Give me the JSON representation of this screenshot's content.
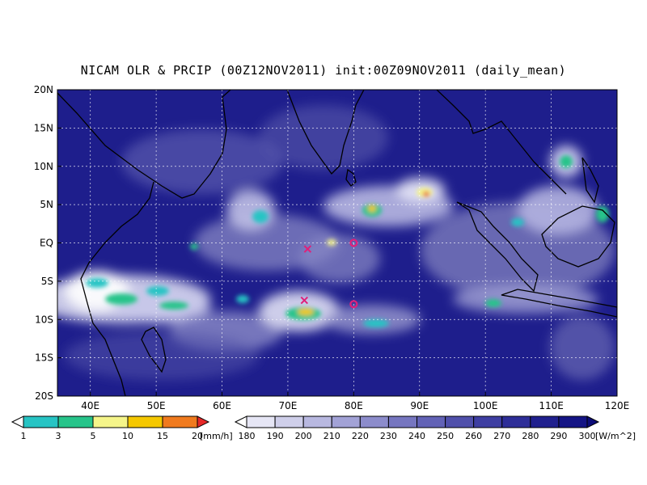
{
  "title": "NICAM OLR & PRCIP (00Z12NOV2011) init:00Z09NOV2011 (daily_mean)",
  "map": {
    "lon_range": [
      35,
      120
    ],
    "lat_range": [
      -20,
      20
    ],
    "lon_ticks": [
      "40E",
      "50E",
      "60E",
      "70E",
      "80E",
      "90E",
      "100E",
      "110E",
      "120E"
    ],
    "lat_ticks": [
      "20N",
      "15N",
      "10N",
      "5N",
      "EQ",
      "5S",
      "10S",
      "15S",
      "20S"
    ],
    "ocean_color": "#1e1e8c",
    "markers": [
      {
        "type": "cross",
        "lon": 73,
        "lat": -0.8,
        "color": "#e0207a"
      },
      {
        "type": "circle",
        "lon": 80,
        "lat": 0,
        "color": "#e0207a"
      },
      {
        "type": "cross",
        "lon": 72.5,
        "lat": -7.5,
        "color": "#e0207a"
      },
      {
        "type": "circle",
        "lon": 80,
        "lat": -8,
        "color": "#e0207a"
      }
    ]
  },
  "precip_colorbar": {
    "labels": [
      "1",
      "3",
      "5",
      "10",
      "15",
      "20"
    ],
    "unit": "[mm/h]",
    "colors": [
      "#ffffff",
      "#27c4c4",
      "#27c48a",
      "#f5f58a",
      "#f5c800",
      "#f07a1e",
      "#e62828"
    ]
  },
  "olr_colorbar": {
    "labels": [
      "180",
      "190",
      "200",
      "210",
      "220",
      "230",
      "240",
      "250",
      "260",
      "270",
      "280",
      "290",
      "300"
    ],
    "unit": "[W/m^2]",
    "colors": [
      "#ffffff",
      "#e6e6f5",
      "#cfcfea",
      "#b8b8e0",
      "#a2a2d6",
      "#8c8ccb",
      "#7676c0",
      "#6262b6",
      "#5050ab",
      "#3e3ea2",
      "#2e2e98",
      "#20208e",
      "#141485",
      "#0c0c78"
    ]
  }
}
